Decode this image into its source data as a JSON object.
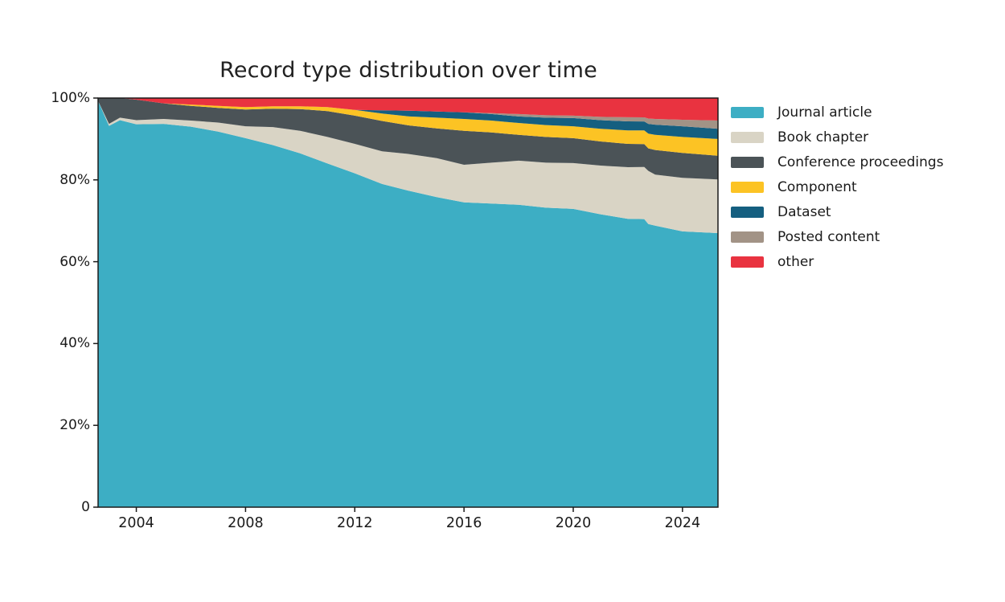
{
  "chart_data": {
    "type": "area",
    "stacked": true,
    "normalized_percent": true,
    "title": "Record type distribution over time",
    "xlabel": "",
    "ylabel": "",
    "xlim": [
      2002.6,
      2025.3
    ],
    "ylim": [
      0,
      100
    ],
    "grid": false,
    "legend_position": "right",
    "xticks": {
      "values": [
        2004,
        2008,
        2012,
        2016,
        2020,
        2024
      ],
      "labels": [
        "2004",
        "2008",
        "2012",
        "2016",
        "2020",
        "2024"
      ]
    },
    "yticks": {
      "values": [
        0,
        20,
        40,
        60,
        80,
        100
      ],
      "labels": [
        "0",
        "20%",
        "40%",
        "60%",
        "80%",
        "100%"
      ]
    },
    "x": [
      2002.6,
      2003,
      2003.4,
      2004,
      2005,
      2006,
      2007,
      2008,
      2009,
      2010,
      2011,
      2012,
      2013,
      2014,
      2015,
      2016,
      2017,
      2018,
      2019,
      2020,
      2021,
      2022,
      2022.6,
      2022.75,
      2023,
      2024,
      2025.3
    ],
    "series": [
      {
        "name": "Journal article",
        "color": "#3daec4",
        "values": [
          99.3,
          93.2,
          94.6,
          93.6,
          93.7,
          93.0,
          91.8,
          90.2,
          88.5,
          86.5,
          84.0,
          81.7,
          79.0,
          77.3,
          75.8,
          74.5,
          74.2,
          73.9,
          73.2,
          72.9,
          71.6,
          70.5,
          70.2,
          69.2,
          68.8,
          67.4,
          67.0
        ]
      },
      {
        "name": "Book chapter",
        "color": "#d9d4c5",
        "values": [
          0,
          0.5,
          0.6,
          1.0,
          1.2,
          1.5,
          2.2,
          2.9,
          4.4,
          5.5,
          6.5,
          7.2,
          8.0,
          9.0,
          9.5,
          9.2,
          10.0,
          10.8,
          11.0,
          11.2,
          11.9,
          12.6,
          12.7,
          13.0,
          12.5,
          13.1,
          13.1
        ]
      },
      {
        "name": "Conference proceedings",
        "color": "#4b5357",
        "values": [
          0.7,
          6.3,
          4.8,
          5.0,
          3.8,
          3.6,
          3.6,
          4.1,
          4.5,
          5.3,
          6.3,
          6.9,
          7.4,
          7.0,
          7.3,
          8.3,
          7.4,
          6.3,
          6.3,
          6.1,
          5.9,
          5.7,
          5.6,
          5.5,
          6.0,
          6.1,
          5.8
        ]
      },
      {
        "name": "Component",
        "color": "#fcc324",
        "values": [
          0,
          0,
          0,
          0,
          0,
          0.3,
          0.5,
          0.6,
          0.6,
          0.7,
          1.0,
          1.4,
          1.8,
          2.2,
          2.6,
          2.9,
          2.9,
          2.9,
          2.9,
          2.9,
          3.1,
          3.3,
          3.3,
          3.6,
          3.7,
          3.9,
          4.1
        ]
      },
      {
        "name": "Dataset",
        "color": "#155f80",
        "values": [
          0,
          0,
          0,
          0,
          0,
          0,
          0,
          0,
          0,
          0,
          0,
          0,
          0.8,
          1.4,
          1.5,
          1.6,
          1.6,
          1.6,
          1.8,
          2.0,
          2.1,
          2.2,
          2.2,
          2.4,
          2.5,
          2.6,
          2.5
        ]
      },
      {
        "name": "Posted content",
        "color": "#a29386",
        "values": [
          0,
          0,
          0,
          0,
          0,
          0,
          0,
          0,
          0,
          0,
          0,
          0,
          0,
          0,
          0,
          0,
          0.2,
          0.6,
          0.6,
          0.6,
          0.8,
          1.0,
          1.0,
          1.3,
          1.4,
          1.6,
          2.0
        ]
      },
      {
        "name": "other",
        "color": "#e93340",
        "values": [
          0,
          0,
          0,
          0.4,
          1.3,
          1.6,
          1.9,
          2.2,
          2.0,
          2.0,
          2.2,
          2.9,
          3.0,
          3.1,
          3.3,
          3.5,
          3.7,
          3.9,
          4.2,
          4.3,
          4.6,
          4.7,
          4.7,
          5.0,
          5.1,
          5.3,
          5.5
        ]
      }
    ],
    "axis_color": "#1a1a1a",
    "title_color": "#212121"
  }
}
